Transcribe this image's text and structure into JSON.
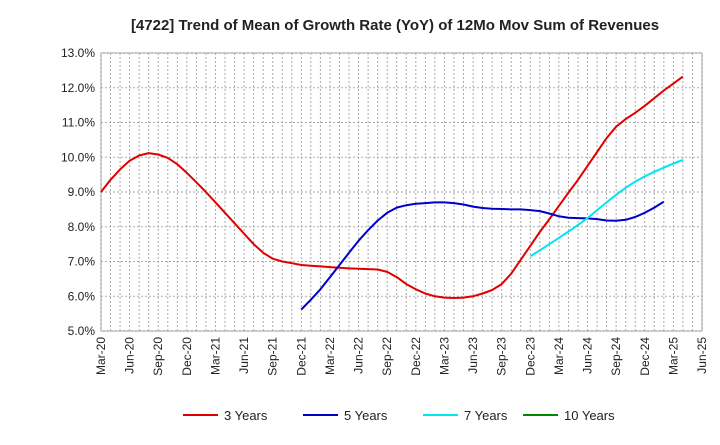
{
  "chart_data": {
    "type": "line",
    "title": "[4722]  Trend of Mean of Growth Rate (YoY) of 12Mo Mov Sum of Revenues",
    "xlabel": "",
    "ylabel": "",
    "ylim": [
      5.0,
      13.0
    ],
    "yticks": [
      "5.0%",
      "6.0%",
      "7.0%",
      "8.0%",
      "9.0%",
      "10.0%",
      "11.0%",
      "12.0%",
      "13.0%"
    ],
    "x_tick_labels": [
      "Mar-20",
      "Jun-20",
      "Sep-20",
      "Dec-20",
      "Mar-21",
      "Jun-21",
      "Sep-21",
      "Dec-21",
      "Mar-22",
      "Jun-22",
      "Sep-22",
      "Dec-22",
      "Mar-23",
      "Jun-23",
      "Sep-23",
      "Dec-23",
      "Mar-24",
      "Jun-24",
      "Sep-24",
      "Dec-24",
      "Mar-25",
      "Jun-25"
    ],
    "grid": true,
    "legend_position": "bottom",
    "series": [
      {
        "name": "3 Years",
        "color": "#e00000",
        "start_month_index": 0,
        "values": [
          9.0,
          9.35,
          9.65,
          9.9,
          10.05,
          10.12,
          10.08,
          9.98,
          9.8,
          9.55,
          9.28,
          9.0,
          8.7,
          8.4,
          8.1,
          7.8,
          7.5,
          7.25,
          7.08,
          7.0,
          6.95,
          6.9,
          6.88,
          6.86,
          6.84,
          6.82,
          6.8,
          6.79,
          6.78,
          6.77,
          6.7,
          6.55,
          6.35,
          6.2,
          6.08,
          6.0,
          5.96,
          5.95,
          5.96,
          6.0,
          6.08,
          6.18,
          6.35,
          6.65,
          7.05,
          7.45,
          7.85,
          8.22,
          8.6,
          8.98,
          9.35,
          9.75,
          10.15,
          10.55,
          10.88,
          11.1,
          11.28,
          11.48,
          11.7,
          11.92,
          12.12,
          12.32
        ]
      },
      {
        "name": "5 Years",
        "color": "#0000cc",
        "start_month_index": 21,
        "values": [
          5.62,
          5.9,
          6.2,
          6.55,
          6.9,
          7.25,
          7.6,
          7.9,
          8.18,
          8.4,
          8.55,
          8.62,
          8.66,
          8.68,
          8.7,
          8.7,
          8.68,
          8.64,
          8.58,
          8.54,
          8.52,
          8.51,
          8.5,
          8.5,
          8.48,
          8.45,
          8.38,
          8.3,
          8.26,
          8.25,
          8.24,
          8.22,
          8.18,
          8.17,
          8.2,
          8.28,
          8.4,
          8.55,
          8.72
        ]
      },
      {
        "name": "7 Years",
        "color": "#00e5ee",
        "start_month_index": 45,
        "values": [
          7.15,
          7.32,
          7.5,
          7.68,
          7.86,
          8.05,
          8.25,
          8.48,
          8.7,
          8.92,
          9.12,
          9.3,
          9.45,
          9.58,
          9.7,
          9.82,
          9.92
        ]
      },
      {
        "name": "10 Years",
        "color": "#008800",
        "start_month_index": 0,
        "values": []
      }
    ]
  }
}
